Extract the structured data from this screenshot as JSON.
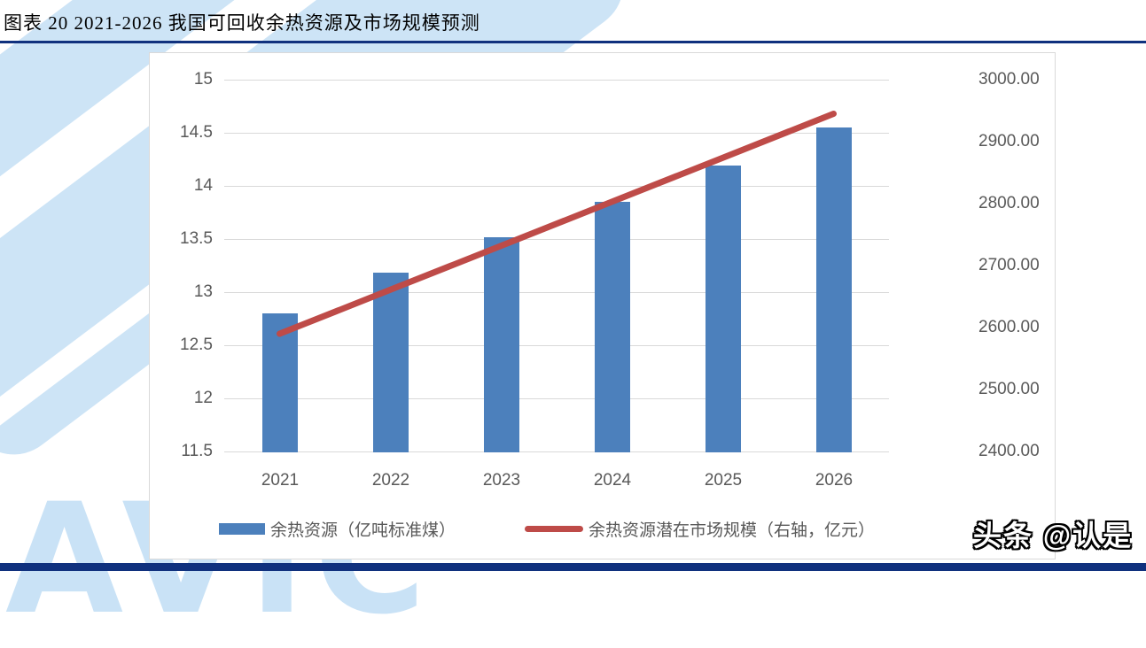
{
  "page": {
    "title": "图表 20 2021-2026 我国可回收余热资源及市场规模预测",
    "watermark_brand": "头条 @认是",
    "background_letters": "AVIC",
    "colors": {
      "bar": "#4C80BC",
      "line": "#BE4B48",
      "navy_rule": "#10317E",
      "grid": "#D9D9D9",
      "axis_text": "#595959",
      "watermark_blue": "#C9E2F6"
    }
  },
  "chart_data": {
    "type": "bar",
    "subtype": "combo-bar-line-dual-axis",
    "categories": [
      "2021",
      "2022",
      "2023",
      "2024",
      "2025",
      "2026"
    ],
    "series": [
      {
        "name": "余热资源（亿吨标准煤）",
        "type": "bar",
        "axis": "left",
        "values": [
          12.8,
          13.18,
          13.52,
          13.85,
          14.19,
          14.55
        ]
      },
      {
        "name": "余热资源潜在市场规模（右轴，亿元）",
        "type": "line",
        "axis": "right",
        "values": [
          2590,
          2661,
          2732,
          2803,
          2874,
          2945
        ]
      }
    ],
    "left_axis": {
      "min": 11.5,
      "max": 15,
      "step": 0.5
    },
    "right_axis": {
      "min": 2400,
      "max": 3000,
      "step": 100,
      "decimals": 2
    },
    "grid": true,
    "legend_position": "bottom",
    "title": "",
    "xlabel": "",
    "ylabel": ""
  }
}
